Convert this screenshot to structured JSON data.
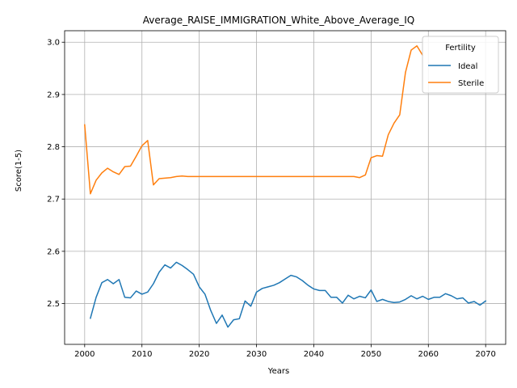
{
  "chart_data": {
    "type": "line",
    "title": "Average_RAISE_IMMIGRATION_White_Above_Average_IQ",
    "xlabel": "Years",
    "ylabel": "Score(1-5)",
    "xlim": [
      1996.5,
      2073.5
    ],
    "ylim": [
      2.422,
      3.022
    ],
    "xticks": [
      2000,
      2010,
      2020,
      2030,
      2040,
      2050,
      2060,
      2070
    ],
    "yticks": [
      2.5,
      2.6,
      2.7,
      2.8,
      2.9,
      3.0
    ],
    "xtick_labels": [
      "2000",
      "2010",
      "2020",
      "2030",
      "2040",
      "2050",
      "2060",
      "2070"
    ],
    "ytick_labels": [
      "2.5",
      "2.6",
      "2.7",
      "2.8",
      "2.9",
      "3.0"
    ],
    "grid": true,
    "legend": {
      "title": "Fertility",
      "position": "top-right"
    },
    "series": [
      {
        "name": "Ideal",
        "color": "#1f77b4",
        "x": [
          2001,
          2002,
          2003,
          2004,
          2005,
          2006,
          2007,
          2008,
          2009,
          2010,
          2011,
          2012,
          2013,
          2014,
          2015,
          2016,
          2017,
          2018,
          2019,
          2020,
          2021,
          2022,
          2023,
          2024,
          2025,
          2026,
          2027,
          2028,
          2029,
          2030,
          2031,
          2032,
          2033,
          2034,
          2035,
          2036,
          2037,
          2038,
          2039,
          2040,
          2041,
          2042,
          2043,
          2044,
          2045,
          2046,
          2047,
          2048,
          2049,
          2050,
          2051,
          2052,
          2053,
          2054,
          2055,
          2056,
          2057,
          2058,
          2059,
          2060,
          2061,
          2062,
          2063,
          2064,
          2065,
          2066,
          2067,
          2068,
          2069,
          2070
        ],
        "y": [
          2.472,
          2.512,
          2.54,
          2.546,
          2.538,
          2.546,
          2.512,
          2.511,
          2.524,
          2.518,
          2.522,
          2.538,
          2.56,
          2.574,
          2.568,
          2.579,
          2.573,
          2.565,
          2.556,
          2.532,
          2.518,
          2.487,
          2.462,
          2.478,
          2.455,
          2.469,
          2.471,
          2.505,
          2.495,
          2.522,
          2.529,
          2.532,
          2.535,
          2.54,
          2.547,
          2.554,
          2.551,
          2.544,
          2.535,
          2.528,
          2.525,
          2.525,
          2.512,
          2.512,
          2.501,
          2.516,
          2.509,
          2.514,
          2.511,
          2.526,
          2.504,
          2.508,
          2.504,
          2.502,
          2.503,
          2.508,
          2.515,
          2.509,
          2.514,
          2.508,
          2.512,
          2.512,
          2.519,
          2.515,
          2.509,
          2.511,
          2.501,
          2.504,
          2.497,
          2.505
        ]
      },
      {
        "name": "Sterile",
        "color": "#ff7f0e",
        "x": [
          2000,
          2001,
          2002,
          2003,
          2004,
          2005,
          2006,
          2007,
          2008,
          2009,
          2010,
          2011,
          2012,
          2013,
          2014,
          2015,
          2016,
          2017,
          2018,
          2019,
          2020,
          2021,
          2022,
          2023,
          2024,
          2025,
          2026,
          2027,
          2028,
          2029,
          2030,
          2031,
          2032,
          2033,
          2034,
          2035,
          2036,
          2037,
          2038,
          2039,
          2040,
          2041,
          2042,
          2043,
          2044,
          2045,
          2046,
          2047,
          2048,
          2049,
          2050,
          2051,
          2052,
          2053,
          2054,
          2055,
          2056,
          2057,
          2058,
          2059
        ],
        "y": [
          2.842,
          2.71,
          2.736,
          2.75,
          2.759,
          2.752,
          2.747,
          2.762,
          2.763,
          2.782,
          2.802,
          2.812,
          2.727,
          2.739,
          2.74,
          2.741,
          2.743,
          2.744,
          2.743,
          2.743,
          2.743,
          2.743,
          2.743,
          2.743,
          2.743,
          2.743,
          2.743,
          2.743,
          2.743,
          2.743,
          2.743,
          2.743,
          2.743,
          2.743,
          2.743,
          2.743,
          2.743,
          2.743,
          2.743,
          2.743,
          2.743,
          2.743,
          2.743,
          2.743,
          2.743,
          2.743,
          2.743,
          2.743,
          2.741,
          2.746,
          2.779,
          2.783,
          2.782,
          2.823,
          2.845,
          2.861,
          2.942,
          2.985,
          2.993,
          2.975
        ]
      }
    ]
  }
}
